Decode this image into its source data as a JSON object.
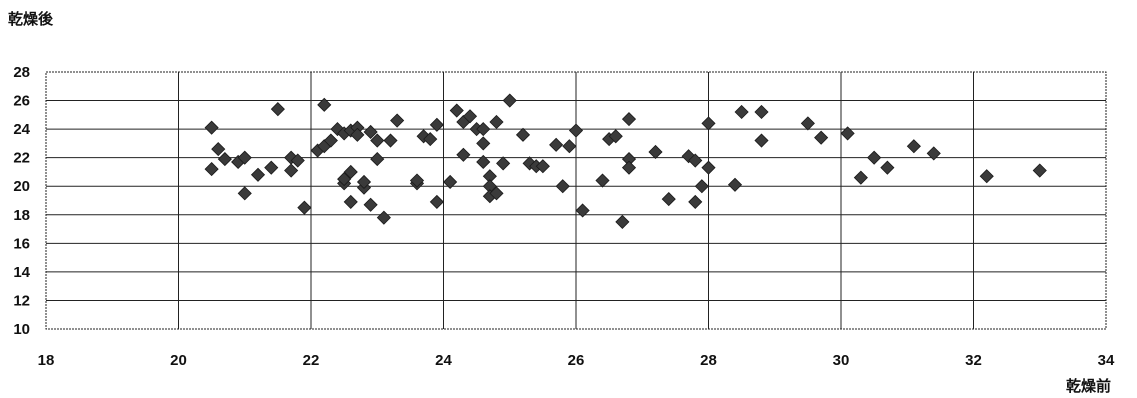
{
  "chart_data": {
    "type": "scatter",
    "xlabel": "乾燥前",
    "ylabel": "乾燥後",
    "xlim": [
      18,
      34
    ],
    "ylim": [
      10,
      28
    ],
    "x_ticks": [
      "18",
      "20",
      "22",
      "24",
      "26",
      "28",
      "30",
      "32",
      "34"
    ],
    "y_ticks": [
      "10",
      "12",
      "14",
      "16",
      "18",
      "20",
      "22",
      "24",
      "26",
      "28"
    ],
    "grid": true,
    "legend": "none",
    "marker": "diamond",
    "marker_color": "#3a3a3a",
    "points": [
      [
        20.5,
        24.1
      ],
      [
        20.5,
        21.2
      ],
      [
        20.6,
        22.6
      ],
      [
        20.7,
        21.9
      ],
      [
        20.9,
        21.7
      ],
      [
        21.0,
        22.0
      ],
      [
        21.0,
        19.5
      ],
      [
        21.2,
        20.8
      ],
      [
        21.4,
        21.3
      ],
      [
        21.5,
        25.4
      ],
      [
        21.7,
        21.1
      ],
      [
        21.7,
        22.0
      ],
      [
        21.8,
        21.8
      ],
      [
        21.9,
        18.5
      ],
      [
        22.1,
        22.5
      ],
      [
        22.2,
        22.8
      ],
      [
        22.2,
        25.7
      ],
      [
        22.3,
        23.2
      ],
      [
        22.4,
        24.0
      ],
      [
        22.5,
        20.2
      ],
      [
        22.5,
        20.5
      ],
      [
        22.5,
        23.7
      ],
      [
        22.6,
        21.0
      ],
      [
        22.6,
        18.9
      ],
      [
        22.6,
        23.9
      ],
      [
        22.7,
        24.1
      ],
      [
        22.7,
        23.6
      ],
      [
        22.8,
        19.9
      ],
      [
        22.8,
        20.3
      ],
      [
        22.9,
        23.8
      ],
      [
        22.9,
        18.7
      ],
      [
        23.0,
        21.9
      ],
      [
        23.0,
        23.2
      ],
      [
        23.1,
        17.8
      ],
      [
        23.2,
        23.2
      ],
      [
        23.3,
        24.6
      ],
      [
        23.6,
        20.2
      ],
      [
        23.6,
        20.4
      ],
      [
        23.7,
        23.5
      ],
      [
        23.8,
        23.3
      ],
      [
        23.9,
        18.9
      ],
      [
        23.9,
        24.3
      ],
      [
        24.1,
        20.3
      ],
      [
        24.2,
        25.3
      ],
      [
        24.3,
        24.5
      ],
      [
        24.3,
        22.2
      ],
      [
        24.4,
        24.9
      ],
      [
        24.5,
        24.0
      ],
      [
        24.6,
        21.7
      ],
      [
        24.6,
        23.0
      ],
      [
        24.6,
        24.0
      ],
      [
        24.7,
        20.7
      ],
      [
        24.7,
        20.0
      ],
      [
        24.7,
        19.3
      ],
      [
        24.8,
        24.5
      ],
      [
        24.8,
        19.5
      ],
      [
        24.9,
        21.6
      ],
      [
        25.0,
        26.0
      ],
      [
        25.2,
        23.6
      ],
      [
        25.3,
        21.6
      ],
      [
        25.4,
        21.4
      ],
      [
        25.5,
        21.4
      ],
      [
        25.7,
        22.9
      ],
      [
        25.8,
        20.0
      ],
      [
        25.9,
        22.8
      ],
      [
        26.0,
        23.9
      ],
      [
        26.1,
        18.3
      ],
      [
        26.4,
        20.4
      ],
      [
        26.5,
        23.3
      ],
      [
        26.6,
        23.5
      ],
      [
        26.7,
        17.5
      ],
      [
        26.8,
        21.9
      ],
      [
        26.8,
        21.3
      ],
      [
        26.8,
        24.7
      ],
      [
        27.2,
        22.4
      ],
      [
        27.4,
        19.1
      ],
      [
        27.7,
        22.1
      ],
      [
        27.8,
        21.8
      ],
      [
        27.8,
        18.9
      ],
      [
        27.9,
        20.0
      ],
      [
        28.0,
        24.4
      ],
      [
        28.0,
        21.3
      ],
      [
        28.4,
        20.1
      ],
      [
        28.5,
        25.2
      ],
      [
        28.8,
        23.2
      ],
      [
        28.8,
        25.2
      ],
      [
        29.5,
        24.4
      ],
      [
        29.7,
        23.4
      ],
      [
        30.1,
        23.7
      ],
      [
        30.3,
        20.6
      ],
      [
        30.5,
        22.0
      ],
      [
        30.7,
        21.3
      ],
      [
        31.1,
        22.8
      ],
      [
        31.4,
        22.3
      ],
      [
        32.2,
        20.7
      ],
      [
        33.0,
        21.1
      ]
    ]
  }
}
